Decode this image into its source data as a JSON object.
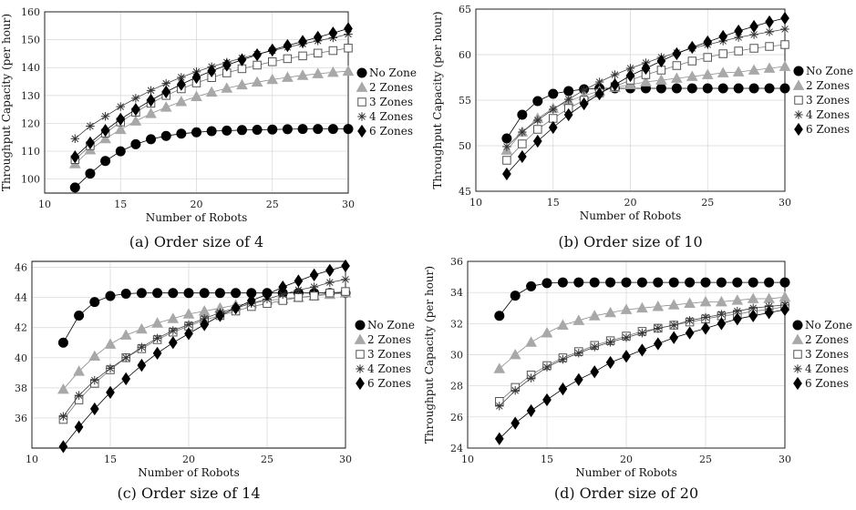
{
  "chart_data": [
    {
      "type": "line",
      "caption": "(a) Order size of 4",
      "xlabel": "Number of Robots",
      "ylabel": "Throughput Capacity (per hour)",
      "xlim": [
        10,
        30
      ],
      "ylim": [
        95,
        160
      ],
      "xticks": [
        "10",
        "15",
        "20",
        "25",
        "30"
      ],
      "yticks": [
        "100",
        "110",
        "120",
        "130",
        "140",
        "150",
        "160"
      ],
      "grid": true,
      "legend": "right",
      "x": [
        12,
        13,
        14,
        15,
        16,
        17,
        18,
        19,
        20,
        21,
        22,
        23,
        24,
        25,
        26,
        27,
        28,
        29,
        30
      ],
      "series": [
        {
          "name": "No Zone",
          "marker": "circle",
          "values": [
            97,
            102,
            106.5,
            110,
            112.5,
            114.3,
            115.5,
            116.3,
            116.8,
            117.2,
            117.4,
            117.6,
            117.7,
            117.8,
            117.9,
            118,
            118,
            118,
            118
          ]
        },
        {
          "name": "2 Zones",
          "marker": "triangle",
          "values": [
            105.5,
            110.5,
            114.5,
            117.8,
            120.8,
            123.5,
            125.8,
            127.8,
            129.6,
            131.2,
            132.6,
            133.8,
            134.8,
            135.7,
            136.5,
            137.2,
            137.8,
            138.3,
            138.7
          ]
        },
        {
          "name": "3 Zones",
          "marker": "square",
          "values": [
            107,
            112,
            116.5,
            120.5,
            124,
            127.2,
            130,
            132.4,
            134.5,
            136.4,
            138.1,
            139.6,
            140.9,
            142.1,
            143.2,
            144.2,
            145.2,
            146.1,
            147
          ]
        },
        {
          "name": "4 Zones",
          "marker": "star",
          "values": [
            114.5,
            119,
            122.5,
            126,
            129,
            131.8,
            134.3,
            136.5,
            138.5,
            140.3,
            141.9,
            143.4,
            144.8,
            146.1,
            147.3,
            148.5,
            149.6,
            150.7,
            152
          ]
        },
        {
          "name": "6 Zones",
          "marker": "diamond",
          "values": [
            108,
            113,
            117.5,
            121.5,
            125,
            128.3,
            131.3,
            134,
            136.5,
            138.8,
            140.9,
            142.8,
            144.6,
            146.3,
            147.9,
            149.4,
            150.9,
            152.4,
            154
          ]
        }
      ]
    },
    {
      "type": "line",
      "caption": "(b) Order size of 10",
      "xlabel": "Number of Robots",
      "ylabel": "Throughput Capacity (per hour)",
      "xlim": [
        10,
        30
      ],
      "ylim": [
        45,
        65
      ],
      "xticks": [
        "10",
        "15",
        "20",
        "25",
        "30"
      ],
      "yticks": [
        "45",
        "50",
        "55",
        "60",
        "65"
      ],
      "grid": true,
      "legend": "right",
      "x": [
        12,
        13,
        14,
        15,
        16,
        17,
        18,
        19,
        20,
        21,
        22,
        23,
        24,
        25,
        26,
        27,
        28,
        29,
        30
      ],
      "series": [
        {
          "name": "No Zone",
          "marker": "circle",
          "values": [
            50.8,
            53.4,
            54.9,
            55.7,
            56.0,
            56.2,
            56.3,
            56.3,
            56.3,
            56.3,
            56.3,
            56.3,
            56.3,
            56.3,
            56.3,
            56.3,
            56.3,
            56.3,
            56.3
          ]
        },
        {
          "name": "2 Zones",
          "marker": "triangle",
          "values": [
            49.5,
            51.5,
            53,
            54.1,
            54.9,
            55.5,
            56,
            56.4,
            56.7,
            57,
            57.2,
            57.4,
            57.6,
            57.8,
            58,
            58.1,
            58.3,
            58.5,
            58.7
          ]
        },
        {
          "name": "3 Zones",
          "marker": "square",
          "values": [
            48.4,
            50.2,
            51.8,
            53,
            54.1,
            55,
            55.8,
            56.5,
            57.2,
            57.8,
            58.3,
            58.8,
            59.3,
            59.7,
            60.1,
            60.4,
            60.7,
            60.9,
            61.1
          ]
        },
        {
          "name": "4 Zones",
          "marker": "star",
          "values": [
            49.9,
            51.5,
            52.8,
            54,
            55.1,
            56.1,
            57,
            57.8,
            58.5,
            59.1,
            59.7,
            60.2,
            60.7,
            61.1,
            61.5,
            61.9,
            62.2,
            62.5,
            62.8
          ]
        },
        {
          "name": "6 Zones",
          "marker": "diamond",
          "values": [
            46.9,
            48.8,
            50.5,
            52,
            53.4,
            54.6,
            55.7,
            56.7,
            57.7,
            58.5,
            59.3,
            60.1,
            60.8,
            61.4,
            62,
            62.6,
            63.1,
            63.6,
            64
          ]
        }
      ]
    },
    {
      "type": "line",
      "caption": "(c) Order size of 14",
      "xlabel": "Number of Robots",
      "ylabel": "Throughput Capacity (per hour)",
      "xlim": [
        10,
        30
      ],
      "ylim": [
        34,
        46.4
      ],
      "xticks": [
        "10",
        "15",
        "20",
        "25",
        "30"
      ],
      "yticks": [
        "36",
        "38",
        "40",
        "42",
        "44",
        "46"
      ],
      "grid": true,
      "legend": "right",
      "x": [
        12,
        13,
        14,
        15,
        16,
        17,
        18,
        19,
        20,
        21,
        22,
        23,
        24,
        25,
        26,
        27,
        28,
        29,
        30
      ],
      "series": [
        {
          "name": "No Zone",
          "marker": "circle",
          "values": [
            41,
            42.8,
            43.7,
            44.1,
            44.25,
            44.3,
            44.3,
            44.3,
            44.3,
            44.3,
            44.3,
            44.3,
            44.3,
            44.3,
            44.3,
            44.3,
            44.3,
            44.3,
            44.3
          ]
        },
        {
          "name": "2 Zones",
          "marker": "triangle",
          "values": [
            37.9,
            39.1,
            40.1,
            40.9,
            41.5,
            41.9,
            42.3,
            42.6,
            42.9,
            43.1,
            43.3,
            43.5,
            43.6,
            43.8,
            43.9,
            44,
            44.1,
            44.2,
            44.3
          ]
        },
        {
          "name": "3 Zones",
          "marker": "square",
          "values": [
            35.9,
            37.2,
            38.3,
            39.2,
            40,
            40.6,
            41.2,
            41.7,
            42.1,
            42.5,
            42.8,
            43.1,
            43.4,
            43.6,
            43.8,
            44,
            44.1,
            44.3,
            44.4
          ]
        },
        {
          "name": "4 Zones",
          "marker": "star",
          "values": [
            36.1,
            37.5,
            38.5,
            39.3,
            40,
            40.7,
            41.3,
            41.8,
            42.2,
            42.6,
            43,
            43.3,
            43.6,
            43.9,
            44.2,
            44.5,
            44.7,
            45,
            45.2
          ]
        },
        {
          "name": "6 Zones",
          "marker": "diamond",
          "values": [
            34.1,
            35.4,
            36.6,
            37.7,
            38.6,
            39.5,
            40.3,
            41,
            41.6,
            42.2,
            42.8,
            43.3,
            43.8,
            44.2,
            44.7,
            45.1,
            45.5,
            45.8,
            46.1
          ]
        }
      ]
    },
    {
      "type": "line",
      "caption": "(d) Order size of 20",
      "xlabel": "Number of Robots",
      "ylabel": "Throughput Capacity (per hour)",
      "xlim": [
        10,
        30
      ],
      "ylim": [
        24,
        36
      ],
      "xticks": [
        "10",
        "15",
        "20",
        "25",
        "30"
      ],
      "yticks": [
        "24",
        "26",
        "28",
        "30",
        "32",
        "34",
        "36"
      ],
      "grid": true,
      "legend": "right",
      "x": [
        12,
        13,
        14,
        15,
        16,
        17,
        18,
        19,
        20,
        21,
        22,
        23,
        24,
        25,
        26,
        27,
        28,
        29,
        30
      ],
      "series": [
        {
          "name": "No Zone",
          "marker": "circle",
          "values": [
            32.5,
            33.8,
            34.4,
            34.6,
            34.65,
            34.65,
            34.65,
            34.65,
            34.65,
            34.65,
            34.65,
            34.65,
            34.65,
            34.65,
            34.65,
            34.65,
            34.65,
            34.65,
            34.65
          ]
        },
        {
          "name": "2 Zones",
          "marker": "triangle",
          "values": [
            29.1,
            30,
            30.8,
            31.4,
            31.9,
            32.2,
            32.5,
            32.7,
            32.9,
            33,
            33.1,
            33.2,
            33.3,
            33.4,
            33.4,
            33.5,
            33.6,
            33.6,
            33.7
          ]
        },
        {
          "name": "3 Zones",
          "marker": "square",
          "values": [
            27,
            27.9,
            28.7,
            29.3,
            29.8,
            30.2,
            30.6,
            30.9,
            31.2,
            31.5,
            31.7,
            31.9,
            32.1,
            32.3,
            32.5,
            32.6,
            32.8,
            32.9,
            33.1
          ]
        },
        {
          "name": "4 Zones",
          "marker": "star",
          "values": [
            26.7,
            27.7,
            28.5,
            29.2,
            29.7,
            30.1,
            30.5,
            30.8,
            31.1,
            31.4,
            31.7,
            31.9,
            32.2,
            32.4,
            32.6,
            32.8,
            33,
            33.1,
            33.2
          ]
        },
        {
          "name": "6 Zones",
          "marker": "diamond",
          "values": [
            24.6,
            25.6,
            26.4,
            27.1,
            27.8,
            28.4,
            28.9,
            29.5,
            29.9,
            30.3,
            30.7,
            31.1,
            31.4,
            31.7,
            32,
            32.3,
            32.5,
            32.7,
            32.9
          ]
        }
      ]
    }
  ]
}
